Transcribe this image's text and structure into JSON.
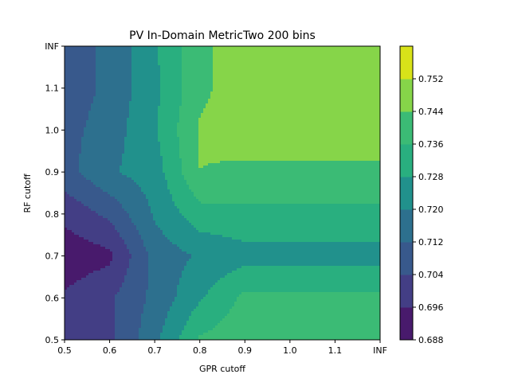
{
  "chart_data": {
    "type": "heatmap",
    "subtype": "filled-contour",
    "title": "PV In-Domain MetricTwo 200 bins",
    "xlabel": "GPR cutoff",
    "ylabel": "RF cutoff",
    "x": [
      0.5,
      0.6,
      0.7,
      0.8,
      0.9,
      1.0,
      1.1,
      1.2
    ],
    "y": [
      0.5,
      0.6,
      0.7,
      0.8,
      0.9,
      1.0,
      1.1,
      1.2
    ],
    "xticklabels": [
      "0.5",
      "0.6",
      "0.7",
      "0.8",
      "0.9",
      "1.0",
      "1.1",
      "INF"
    ],
    "yticklabels": [
      "0.5",
      "0.6",
      "0.7",
      "0.8",
      "0.9",
      "1.0",
      "1.1",
      "INF"
    ],
    "z": [
      [
        0.698,
        0.702,
        0.718,
        0.737,
        0.741,
        0.741,
        0.741,
        0.741
      ],
      [
        0.697,
        0.703,
        0.714,
        0.727,
        0.738,
        0.738,
        0.738,
        0.738
      ],
      [
        0.691,
        0.694,
        0.715,
        0.721,
        0.725,
        0.725,
        0.725,
        0.725
      ],
      [
        0.698,
        0.706,
        0.721,
        0.733,
        0.734,
        0.734,
        0.734,
        0.734
      ],
      [
        0.709,
        0.719,
        0.724,
        0.744,
        0.742,
        0.742,
        0.742,
        0.742
      ],
      [
        0.709,
        0.716,
        0.727,
        0.745,
        0.749,
        0.749,
        0.749,
        0.749
      ],
      [
        0.707,
        0.714,
        0.726,
        0.742,
        0.749,
        0.749,
        0.749,
        0.749
      ],
      [
        0.707,
        0.714,
        0.727,
        0.742,
        0.749,
        0.749,
        0.749,
        0.749
      ]
    ],
    "levels": [
      0.688,
      0.696,
      0.704,
      0.712,
      0.72,
      0.728,
      0.736,
      0.744,
      0.752
    ],
    "colorbar_ticklabels": [
      "0.688",
      "0.696",
      "0.704",
      "0.712",
      "0.720",
      "0.728",
      "0.736",
      "0.744",
      "0.752"
    ],
    "colors": [
      "#481a6c",
      "#433e85",
      "#38598c",
      "#2d708e",
      "#21918c",
      "#29af7f",
      "#3bbb75",
      "#86d549",
      "#d8e219"
    ],
    "grid": false,
    "legend": "colorbar-right"
  }
}
